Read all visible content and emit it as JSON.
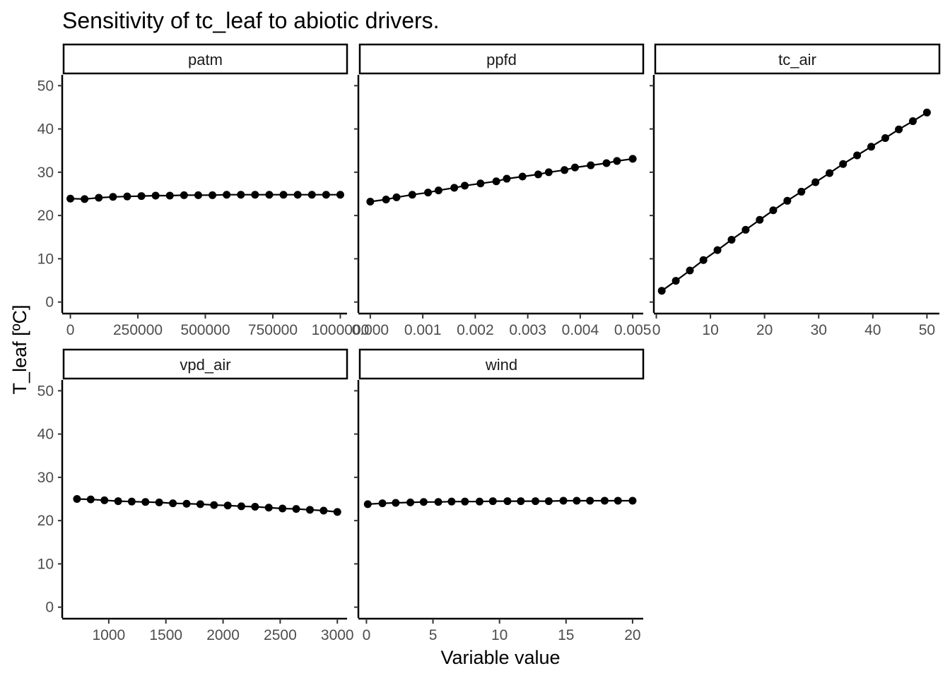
{
  "chart_data": {
    "type": "line",
    "title": "Sensitivity of tc_leaf to abiotic drivers.",
    "xlabel": "Variable value",
    "ylabel": "T_leaf [ºC]",
    "ylim": [
      -2.5,
      52.5
    ],
    "y_ticks": [
      0,
      10,
      20,
      30,
      40,
      50
    ],
    "grid": false,
    "panels": [
      {
        "name": "patm",
        "xlim": [
          -25000,
          1025000
        ],
        "x_ticks": [
          0,
          250000,
          500000,
          750000,
          1000000
        ],
        "x_tick_labels": [
          "0",
          "250000",
          "500000",
          "750000",
          "1000000"
        ],
        "x": [
          0,
          52632,
          105263,
          157895,
          210526,
          263158,
          315789,
          368421,
          421053,
          473684,
          526316,
          578947,
          631579,
          684211,
          736842,
          789474,
          842105,
          894737,
          947368,
          1000000
        ],
        "y": [
          23.9,
          23.8,
          24.1,
          24.3,
          24.4,
          24.5,
          24.6,
          24.6,
          24.7,
          24.7,
          24.7,
          24.8,
          24.8,
          24.8,
          24.8,
          24.8,
          24.8,
          24.8,
          24.8,
          24.8
        ]
      },
      {
        "name": "ppfd",
        "xlim": [
          -0.0002,
          0.0052
        ],
        "x_ticks": [
          0,
          0.001,
          0.002,
          0.003,
          0.004,
          0.005
        ],
        "x_tick_labels": [
          "0.000",
          "0.001",
          "0.002",
          "0.003",
          "0.004",
          "0.005"
        ],
        "x": [
          0.0,
          0.0003,
          0.0005,
          0.0008,
          0.0011,
          0.0013,
          0.0016,
          0.0018,
          0.0021,
          0.0024,
          0.0026,
          0.0029,
          0.0032,
          0.0034,
          0.0037,
          0.0039,
          0.0042,
          0.0045,
          0.0047,
          0.005
        ],
        "y": [
          23.2,
          23.7,
          24.2,
          24.8,
          25.3,
          25.8,
          26.4,
          26.9,
          27.4,
          27.9,
          28.5,
          29.0,
          29.5,
          30.0,
          30.5,
          31.1,
          31.6,
          32.1,
          32.6,
          33.1
        ]
      },
      {
        "name": "tc_air",
        "xlim": [
          -0.2,
          52.3
        ],
        "x_ticks": [
          0,
          10,
          20,
          30,
          40,
          50
        ],
        "x_tick_labels": [
          "0",
          "10",
          "20",
          "30",
          "40",
          "50"
        ],
        "x": [
          1.0,
          3.6,
          6.2,
          8.7,
          11.3,
          13.9,
          16.5,
          19.1,
          21.6,
          24.2,
          26.8,
          29.4,
          32.0,
          34.5,
          37.1,
          39.7,
          42.3,
          44.8,
          47.4,
          50.0
        ],
        "y": [
          2.6,
          4.9,
          7.3,
          9.7,
          12.0,
          14.4,
          16.7,
          19.0,
          21.2,
          23.4,
          25.5,
          27.7,
          29.8,
          31.9,
          33.9,
          35.9,
          37.9,
          39.9,
          41.8,
          43.8
        ]
      },
      {
        "name": "vpd_air",
        "xlim": [
          605,
          3085
        ],
        "x_ticks": [
          1000,
          1500,
          2000,
          2500,
          3000
        ],
        "x_tick_labels": [
          "1000",
          "1500",
          "2000",
          "2500",
          "3000"
        ],
        "x": [
          722,
          842,
          962,
          1082,
          1201,
          1321,
          1441,
          1561,
          1681,
          1801,
          1921,
          2041,
          2160,
          2280,
          2400,
          2520,
          2640,
          2760,
          2880,
          3000
        ],
        "y": [
          25.0,
          24.9,
          24.7,
          24.5,
          24.4,
          24.3,
          24.2,
          24.0,
          23.9,
          23.8,
          23.6,
          23.5,
          23.3,
          23.2,
          23.0,
          22.8,
          22.7,
          22.5,
          22.3,
          22.0
        ]
      },
      {
        "name": "wind",
        "xlim": [
          -0.5,
          20.8
        ],
        "x_ticks": [
          0,
          5,
          10,
          15,
          20
        ],
        "x_tick_labels": [
          "0",
          "5",
          "10",
          "15",
          "20"
        ],
        "x": [
          0.1,
          1.2,
          2.2,
          3.3,
          4.3,
          5.4,
          6.4,
          7.4,
          8.5,
          9.5,
          10.6,
          11.6,
          12.7,
          13.7,
          14.8,
          15.8,
          16.8,
          17.9,
          18.9,
          20.0
        ],
        "y": [
          23.8,
          24.0,
          24.1,
          24.2,
          24.3,
          24.3,
          24.4,
          24.4,
          24.4,
          24.5,
          24.5,
          24.5,
          24.5,
          24.5,
          24.6,
          24.6,
          24.6,
          24.6,
          24.6,
          24.6
        ]
      }
    ]
  }
}
